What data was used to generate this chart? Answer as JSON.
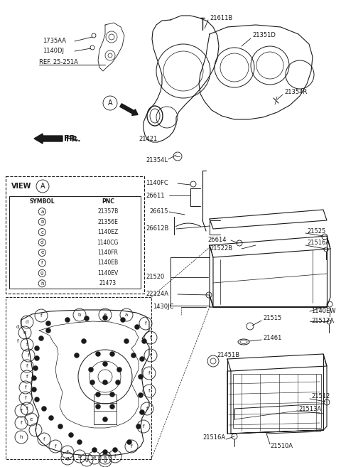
{
  "bg_color": "#ffffff",
  "line_color": "#1a1a1a",
  "fig_width": 4.8,
  "fig_height": 6.57,
  "dpi": 100,
  "table_rows": [
    [
      "a",
      "21357B"
    ],
    [
      "b",
      "21356E"
    ],
    [
      "c",
      "1140EZ"
    ],
    [
      "d",
      "1140CG"
    ],
    [
      "e",
      "1140FR"
    ],
    [
      "f",
      "1140EB"
    ],
    [
      "g",
      "1140EV"
    ],
    [
      "h",
      "21473"
    ]
  ]
}
